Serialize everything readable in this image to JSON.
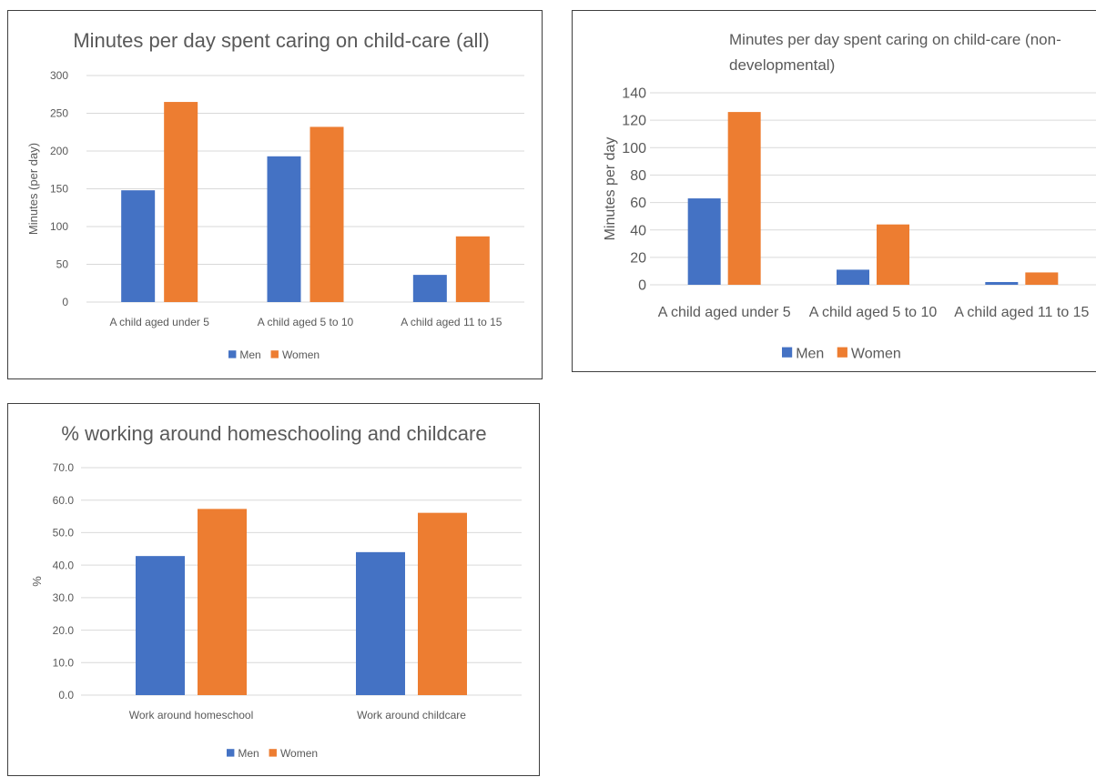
{
  "chart_data": [
    {
      "type": "bar",
      "title": "Minutes per day spent caring on child-care (all)",
      "ylabel": "Minutes (per day)",
      "xlabel": "",
      "categories": [
        "A child aged under 5",
        "A child aged 5 to 10",
        "A child aged 11 to 15"
      ],
      "series": [
        {
          "name": "Men",
          "color": "#4472c4",
          "values": [
            148,
            193,
            36
          ]
        },
        {
          "name": "Women",
          "color": "#ed7d31",
          "values": [
            265,
            232,
            87
          ]
        }
      ],
      "ylim": [
        0,
        300
      ],
      "yticks": [
        "0",
        "50",
        "100",
        "150",
        "200",
        "250",
        "300"
      ],
      "grid": true,
      "legend": "bottom"
    },
    {
      "type": "bar",
      "title": "Minutes per day spent caring on child-care (non-developmental)",
      "title_lines": [
        "Minutes per day spent caring on child-care (non-",
        "developmental)"
      ],
      "ylabel": "Minutes per day",
      "xlabel": "",
      "categories": [
        "A child aged under 5",
        "A child aged 5 to 10",
        "A child aged 11 to 15"
      ],
      "series": [
        {
          "name": "Men",
          "color": "#4472c4",
          "values": [
            63,
            11,
            2
          ]
        },
        {
          "name": "Women",
          "color": "#ed7d31",
          "values": [
            126,
            44,
            9
          ]
        }
      ],
      "ylim": [
        0,
        140
      ],
      "yticks": [
        "0",
        "20",
        "40",
        "60",
        "80",
        "100",
        "120",
        "140"
      ],
      "grid": true,
      "legend": "bottom"
    },
    {
      "type": "bar",
      "title": "% working around homeschooling and childcare",
      "ylabel": "%",
      "xlabel": "",
      "categories": [
        "Work around homeschool",
        "Work around childcare"
      ],
      "series": [
        {
          "name": "Men",
          "color": "#4472c4",
          "values": [
            42.8,
            44.0
          ]
        },
        {
          "name": "Women",
          "color": "#ed7d31",
          "values": [
            57.3,
            56.1
          ]
        }
      ],
      "ylim": [
        0,
        70
      ],
      "yticks": [
        "0.0",
        "10.0",
        "20.0",
        "30.0",
        "40.0",
        "50.0",
        "60.0",
        "70.0"
      ],
      "grid": true,
      "legend": "bottom"
    }
  ]
}
